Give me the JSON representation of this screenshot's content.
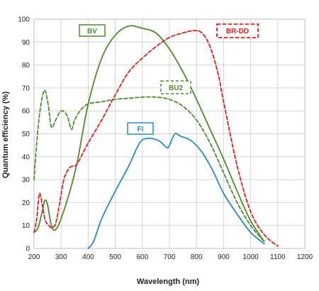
{
  "chart_data": {
    "type": "line",
    "xlabel": "Wavelength (nm)",
    "ylabel": "Quantum efficiency (%)",
    "xlim": [
      200,
      1200
    ],
    "ylim": [
      0,
      100
    ],
    "x_ticks": [
      "200",
      "300",
      "400",
      "500",
      "600",
      "700",
      "800",
      "900",
      "1000",
      "1100",
      "1200"
    ],
    "y_ticks": [
      "0",
      "10",
      "20",
      "30",
      "40",
      "50",
      "60",
      "70",
      "80",
      "90",
      "100"
    ],
    "grid": true,
    "series": [
      {
        "name": "BV",
        "color": "#4e8a2e",
        "style": "solid",
        "points": [
          [
            200,
            7
          ],
          [
            215,
            9
          ],
          [
            230,
            16
          ],
          [
            240,
            21
          ],
          [
            250,
            19
          ],
          [
            262,
            11
          ],
          [
            272,
            8
          ],
          [
            285,
            9
          ],
          [
            300,
            13
          ],
          [
            330,
            24
          ],
          [
            360,
            38
          ],
          [
            400,
            63
          ],
          [
            450,
            83
          ],
          [
            500,
            93
          ],
          [
            550,
            97
          ],
          [
            600,
            96
          ],
          [
            650,
            94
          ],
          [
            700,
            87
          ],
          [
            750,
            77
          ],
          [
            800,
            65
          ],
          [
            850,
            52
          ],
          [
            900,
            39
          ],
          [
            950,
            25
          ],
          [
            1000,
            12
          ],
          [
            1050,
            3
          ]
        ]
      },
      {
        "name": "BU2",
        "color": "#4e8a2e",
        "style": "dashed",
        "points": [
          [
            200,
            30
          ],
          [
            210,
            46
          ],
          [
            222,
            60
          ],
          [
            238,
            69
          ],
          [
            252,
            63
          ],
          [
            264,
            53
          ],
          [
            280,
            56
          ],
          [
            300,
            60
          ],
          [
            322,
            58
          ],
          [
            338,
            52
          ],
          [
            350,
            56
          ],
          [
            370,
            60
          ],
          [
            400,
            63
          ],
          [
            450,
            64
          ],
          [
            500,
            65
          ],
          [
            550,
            65.5
          ],
          [
            600,
            66
          ],
          [
            650,
            66
          ],
          [
            700,
            65
          ],
          [
            750,
            62
          ],
          [
            800,
            56
          ],
          [
            850,
            46
          ],
          [
            900,
            33
          ],
          [
            950,
            20
          ],
          [
            1000,
            10
          ],
          [
            1050,
            3
          ]
        ]
      },
      {
        "name": "BR-DD",
        "color": "#e0201b",
        "style": "dashed",
        "points": [
          [
            200,
            7
          ],
          [
            210,
            13
          ],
          [
            220,
            24
          ],
          [
            232,
            18
          ],
          [
            242,
            12
          ],
          [
            255,
            10
          ],
          [
            265,
            9
          ],
          [
            280,
            11
          ],
          [
            295,
            20
          ],
          [
            310,
            30
          ],
          [
            330,
            35
          ],
          [
            345,
            36
          ],
          [
            360,
            37
          ],
          [
            400,
            46
          ],
          [
            450,
            56
          ],
          [
            500,
            67
          ],
          [
            550,
            77
          ],
          [
            600,
            83
          ],
          [
            650,
            88
          ],
          [
            700,
            92
          ],
          [
            750,
            94
          ],
          [
            790,
            95
          ],
          [
            820,
            94
          ],
          [
            850,
            88
          ],
          [
            880,
            76
          ],
          [
            900,
            64
          ],
          [
            950,
            36
          ],
          [
            1000,
            16
          ],
          [
            1050,
            6
          ],
          [
            1100,
            1
          ]
        ]
      },
      {
        "name": "FI",
        "color": "#2a8bc2",
        "style": "solid",
        "points": [
          [
            400,
            0
          ],
          [
            420,
            3
          ],
          [
            450,
            13
          ],
          [
            500,
            25
          ],
          [
            550,
            36
          ],
          [
            590,
            46
          ],
          [
            620,
            48
          ],
          [
            660,
            47
          ],
          [
            690,
            44
          ],
          [
            700,
            45
          ],
          [
            720,
            50
          ],
          [
            740,
            49
          ],
          [
            780,
            47
          ],
          [
            820,
            42
          ],
          [
            860,
            34
          ],
          [
            900,
            24
          ],
          [
            950,
            15
          ],
          [
            1000,
            7
          ],
          [
            1050,
            2
          ]
        ]
      }
    ]
  }
}
